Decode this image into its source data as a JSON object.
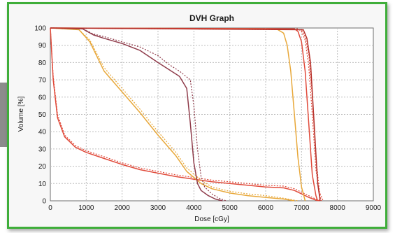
{
  "chart_data": {
    "type": "line",
    "title": "DVH Graph",
    "xlabel": "Dose [cGy]",
    "ylabel": "Volume [%]",
    "xlim": [
      0,
      9000
    ],
    "ylim": [
      0,
      100
    ],
    "xticks": [
      0,
      1000,
      2000,
      3000,
      4000,
      5000,
      6000,
      7000,
      8000,
      9000
    ],
    "yticks": [
      0,
      10,
      20,
      30,
      40,
      50,
      60,
      70,
      80,
      90,
      100
    ],
    "grid": true,
    "legend": "none",
    "series": [
      {
        "color": "#e04a3a",
        "style": "solid",
        "x": [
          0,
          80,
          200,
          400,
          700,
          1000,
          1500,
          2000,
          2500,
          3000,
          3500,
          4000,
          4500,
          5000,
          5500,
          6000,
          6500,
          6800,
          7000,
          7100,
          7200,
          7300,
          7400,
          7500
        ],
        "y": [
          100,
          70,
          48,
          37,
          31,
          28,
          24.5,
          21,
          18,
          16,
          14,
          12.5,
          11,
          10,
          9,
          8,
          7.5,
          6,
          4,
          3,
          2,
          1.2,
          0.4,
          0
        ]
      },
      {
        "color": "#e04a3a",
        "style": "dotted",
        "x": [
          0,
          80,
          200,
          400,
          700,
          1000,
          1500,
          2000,
          2500,
          3000,
          3500,
          4000,
          4500,
          5000,
          5500,
          6000,
          6500,
          6800,
          7000,
          7100,
          7200,
          7300,
          7400,
          7550
        ],
        "y": [
          100,
          72,
          50,
          38,
          32,
          29,
          25.5,
          22,
          19,
          17,
          15,
          13.5,
          12,
          11,
          10,
          9,
          8.5,
          7,
          5,
          4,
          3,
          2,
          1,
          0
        ]
      },
      {
        "color": "#e8a83a",
        "style": "solid",
        "x": [
          0,
          800,
          1100,
          1500,
          2000,
          2500,
          3000,
          3500,
          3800,
          4200,
          4500,
          5000,
          5500,
          6000,
          6500,
          6800
        ],
        "y": [
          100,
          99,
          92,
          75,
          63,
          51,
          38,
          26,
          17,
          10,
          7,
          4.5,
          3,
          2,
          1,
          0
        ]
      },
      {
        "color": "#e8a83a",
        "style": "dotted",
        "x": [
          0,
          800,
          1100,
          1500,
          2000,
          2500,
          3000,
          3500,
          3800,
          4200,
          4500,
          5000,
          5500,
          6000,
          6500,
          6900
        ],
        "y": [
          100,
          99,
          93,
          77,
          65,
          53,
          40,
          28,
          19,
          12,
          8,
          5.5,
          4,
          3,
          1.5,
          0
        ]
      },
      {
        "color": "#8f3b4a",
        "style": "solid",
        "x": [
          0,
          900,
          1200,
          1500,
          2000,
          2500,
          3000,
          3300,
          3600,
          3800,
          3900,
          4000,
          4100,
          4200,
          4400,
          4600,
          4800
        ],
        "y": [
          100,
          99.5,
          96,
          94,
          91,
          87,
          80,
          76,
          72,
          65,
          45,
          22,
          10,
          6,
          3,
          1,
          0
        ]
      },
      {
        "color": "#8f3b4a",
        "style": "dotted",
        "x": [
          0,
          900,
          1200,
          1500,
          2000,
          2500,
          3000,
          3300,
          3600,
          3900,
          4000,
          4100,
          4200,
          4300,
          4500,
          4700,
          4900
        ],
        "y": [
          100,
          99.5,
          96.5,
          95,
          92,
          89,
          84,
          79,
          75,
          70,
          55,
          30,
          14,
          8,
          4,
          1.5,
          0
        ]
      },
      {
        "color": "#e8a83a",
        "style": "solid",
        "x": [
          0,
          6300,
          6500,
          6600,
          6700,
          6800,
          6900,
          7000,
          7100
        ],
        "y": [
          100,
          99.5,
          97,
          90,
          75,
          50,
          25,
          8,
          0
        ]
      },
      {
        "color": "#e04a3a",
        "style": "solid",
        "x": [
          0,
          6800,
          6900,
          7000,
          7100,
          7200,
          7300,
          7400,
          7450
        ],
        "y": [
          100,
          99.5,
          98,
          92,
          75,
          45,
          15,
          3,
          0
        ]
      },
      {
        "color": "#e04a3a",
        "style": "dotted",
        "x": [
          0,
          6900,
          7000,
          7100,
          7200,
          7300,
          7400,
          7500,
          7550
        ],
        "y": [
          100,
          99.5,
          98,
          93,
          78,
          50,
          18,
          4,
          0
        ]
      },
      {
        "color": "#e04a3a",
        "style": "dotted",
        "x": [
          0,
          7000,
          7100,
          7200,
          7300,
          7400,
          7500,
          7600
        ],
        "y": [
          100,
          99,
          95,
          85,
          60,
          25,
          5,
          0
        ]
      },
      {
        "color": "#b5302a",
        "style": "solid",
        "x": [
          0,
          7050,
          7150,
          7250,
          7350,
          7450,
          7520
        ],
        "y": [
          100,
          99,
          94,
          80,
          45,
          10,
          0
        ]
      }
    ]
  }
}
